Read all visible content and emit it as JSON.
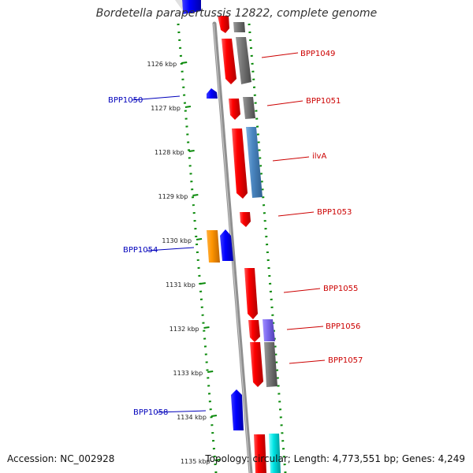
{
  "title": "Bordetella parapertussis 12822, complete genome",
  "accession": "Accession: NC_002928",
  "topology": "Topology: circular; Length: 4,773,551 bp; Genes: 4,249",
  "colors": {
    "backbone": "#8a8a8a",
    "tick": "#0a8a0a",
    "label_forward": "#cc0000",
    "label_reverse": "#0000bb"
  },
  "scale_ticks": [
    "1126 kbp",
    "1127 kbp",
    "1128 kbp",
    "1129 kbp",
    "1130 kbp",
    "1131 kbp",
    "1132 kbp",
    "1133 kbp",
    "1134 kbp",
    "1135 kbp"
  ],
  "gene_labels": [
    {
      "id": "BPP1049",
      "strand": "forward"
    },
    {
      "id": "BPP1050",
      "strand": "reverse"
    },
    {
      "id": "BPP1051",
      "strand": "forward"
    },
    {
      "id": "ilvA",
      "strand": "forward"
    },
    {
      "id": "BPP1053",
      "strand": "forward"
    },
    {
      "id": "BPP1054",
      "strand": "reverse"
    },
    {
      "id": "BPP1055",
      "strand": "forward"
    },
    {
      "id": "BPP1056",
      "strand": "forward"
    },
    {
      "id": "BPP1057",
      "strand": "forward"
    },
    {
      "id": "BPP1058",
      "strand": "reverse"
    }
  ]
}
